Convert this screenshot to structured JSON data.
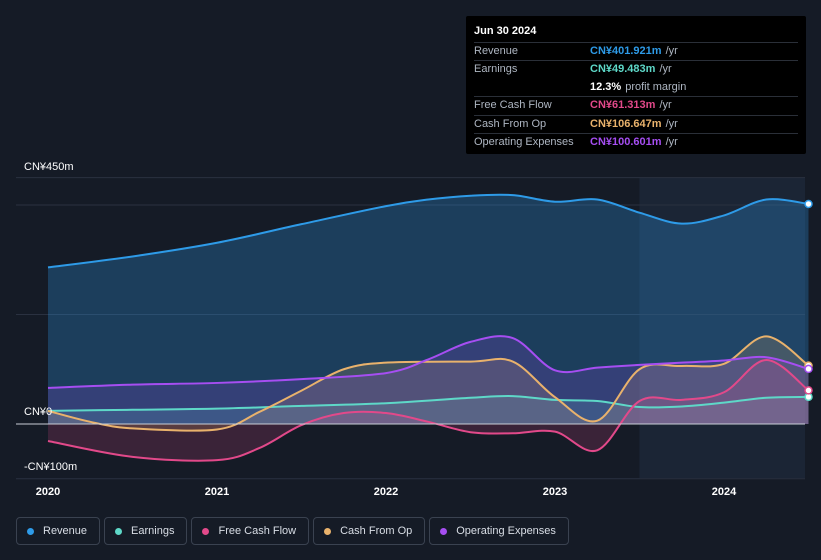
{
  "chart_data": {
    "type": "area",
    "title": "",
    "y_tick_labels": [
      "CN¥450m",
      "CN¥0",
      "-CN¥100m"
    ],
    "ylim": [
      -100,
      450
    ],
    "x_tick_labels": [
      "2020",
      "2021",
      "2022",
      "2023",
      "2024"
    ],
    "xlim": [
      2019.84,
      2024.5
    ],
    "x_ticks": [
      2020,
      2021,
      2022,
      2023,
      2024
    ],
    "forecast_start": 2023.5,
    "series": [
      {
        "name": "Revenue",
        "color": "#2e9be8",
        "points": [
          [
            2020.0,
            286
          ],
          [
            2020.5,
            306
          ],
          [
            2021.0,
            331
          ],
          [
            2021.5,
            365
          ],
          [
            2022.0,
            398
          ],
          [
            2022.25,
            410
          ],
          [
            2022.5,
            417
          ],
          [
            2022.75,
            418
          ],
          [
            2023.0,
            406
          ],
          [
            2023.25,
            410
          ],
          [
            2023.5,
            386
          ],
          [
            2023.75,
            366
          ],
          [
            2024.0,
            381
          ],
          [
            2024.25,
            410
          ],
          [
            2024.5,
            401.921
          ]
        ]
      },
      {
        "name": "Earnings",
        "color": "#5ed8c8",
        "points": [
          [
            2020.0,
            24
          ],
          [
            2020.5,
            26
          ],
          [
            2021.0,
            28
          ],
          [
            2021.5,
            33
          ],
          [
            2022.0,
            38
          ],
          [
            2022.5,
            48
          ],
          [
            2022.75,
            51
          ],
          [
            2023.0,
            44
          ],
          [
            2023.25,
            42
          ],
          [
            2023.5,
            31
          ],
          [
            2023.75,
            32
          ],
          [
            2024.0,
            39
          ],
          [
            2024.25,
            48
          ],
          [
            2024.5,
            49.483
          ]
        ]
      },
      {
        "name": "Free Cash Flow",
        "color": "#e2498a",
        "points": [
          [
            2020.0,
            -31
          ],
          [
            2020.5,
            -60
          ],
          [
            2021.0,
            -66
          ],
          [
            2021.25,
            -44
          ],
          [
            2021.5,
            -2
          ],
          [
            2021.75,
            20
          ],
          [
            2022.0,
            20
          ],
          [
            2022.25,
            4
          ],
          [
            2022.5,
            -15
          ],
          [
            2022.75,
            -17
          ],
          [
            2023.0,
            -14
          ],
          [
            2023.25,
            -48
          ],
          [
            2023.5,
            42
          ],
          [
            2023.75,
            44
          ],
          [
            2024.0,
            58
          ],
          [
            2024.25,
            117
          ],
          [
            2024.5,
            61.313
          ]
        ]
      },
      {
        "name": "Cash From Op",
        "color": "#e9b26c",
        "points": [
          [
            2020.0,
            24
          ],
          [
            2020.25,
            4
          ],
          [
            2020.5,
            -8
          ],
          [
            2021.0,
            -10
          ],
          [
            2021.25,
            22
          ],
          [
            2021.5,
            61
          ],
          [
            2021.75,
            100
          ],
          [
            2022.0,
            112
          ],
          [
            2022.5,
            114
          ],
          [
            2022.75,
            114
          ],
          [
            2023.0,
            49
          ],
          [
            2023.25,
            6
          ],
          [
            2023.5,
            100
          ],
          [
            2023.75,
            106
          ],
          [
            2024.0,
            110
          ],
          [
            2024.25,
            160
          ],
          [
            2024.5,
            106.647
          ]
        ]
      },
      {
        "name": "Operating Expenses",
        "color": "#a64ef2",
        "points": [
          [
            2020.0,
            66
          ],
          [
            2020.5,
            72
          ],
          [
            2021.0,
            75
          ],
          [
            2021.5,
            82
          ],
          [
            2022.0,
            93
          ],
          [
            2022.25,
            118
          ],
          [
            2022.5,
            150
          ],
          [
            2022.75,
            157
          ],
          [
            2023.0,
            98
          ],
          [
            2023.25,
            103
          ],
          [
            2023.5,
            108
          ],
          [
            2023.75,
            112
          ],
          [
            2024.0,
            116
          ],
          [
            2024.25,
            122
          ],
          [
            2024.5,
            100.601
          ]
        ]
      }
    ]
  },
  "tooltip": {
    "date": "Jun 30 2024",
    "rows": [
      {
        "label": "Revenue",
        "value": "CN¥401.921m",
        "unit": "/yr",
        "color": "#2e9be8"
      },
      {
        "label": "Earnings",
        "value": "CN¥49.483m",
        "unit": "/yr",
        "color": "#5ed8c8"
      },
      {
        "label": "",
        "value": "12.3%",
        "unit": "profit margin",
        "color": "#ffffff"
      },
      {
        "label": "Free Cash Flow",
        "value": "CN¥61.313m",
        "unit": "/yr",
        "color": "#e2498a"
      },
      {
        "label": "Cash From Op",
        "value": "CN¥106.647m",
        "unit": "/yr",
        "color": "#e9b26c"
      },
      {
        "label": "Operating Expenses",
        "value": "CN¥100.601m",
        "unit": "/yr",
        "color": "#a64ef2"
      }
    ]
  },
  "legend": [
    {
      "label": "Revenue",
      "color": "#2e9be8"
    },
    {
      "label": "Earnings",
      "color": "#5ed8c8"
    },
    {
      "label": "Free Cash Flow",
      "color": "#e2498a"
    },
    {
      "label": "Cash From Op",
      "color": "#e9b26c"
    },
    {
      "label": "Operating Expenses",
      "color": "#a64ef2"
    }
  ]
}
